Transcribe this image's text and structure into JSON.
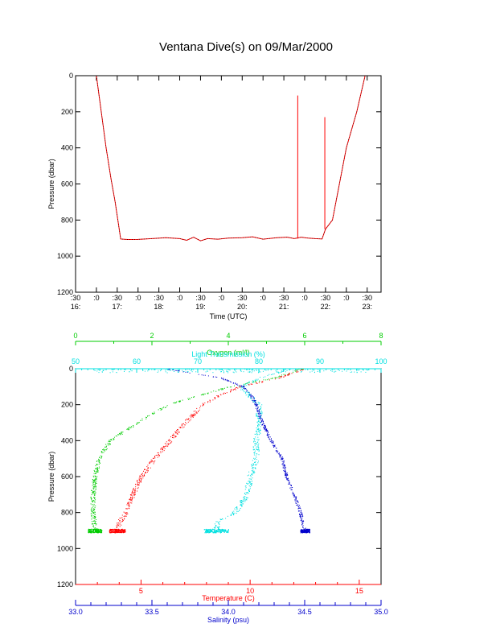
{
  "title": "Ventana Dive(s) on 09/Mar/2000",
  "colors": {
    "axis": "#000000",
    "temperature": "#ff0000",
    "salinity": "#0000cc",
    "oxygen": "#00cc00",
    "transmission": "#00e0e0",
    "trace": "#000000"
  },
  "chart_data": [
    {
      "type": "line",
      "xlabel": "Time (UTC)",
      "ylabel": "Pressure (dbar)",
      "yticks": [
        "0",
        "200",
        "400",
        "600",
        "800",
        "1000",
        "1200"
      ],
      "ylim": [
        1200,
        0
      ],
      "xlim": [
        "16:30",
        "23:50"
      ],
      "xtick_minutes": [
        ":30",
        ":0",
        ":30",
        ":0",
        ":30",
        ":0",
        ":30",
        ":0",
        ":30",
        ":0",
        ":30",
        ":0",
        ":30",
        ":0",
        ":30"
      ],
      "xtick_hours": [
        "16:",
        "17:",
        "18:",
        "19:",
        "20:",
        "21:",
        "22:",
        "23:"
      ],
      "series": [
        {
          "x": [
            "17:00",
            "17:07",
            "17:14",
            "17:21",
            "17:27",
            "17:35",
            "17:45",
            "18:00",
            "18:20",
            "18:40",
            "19:00",
            "19:10",
            "19:20",
            "19:30",
            "19:40",
            "19:55",
            "20:10",
            "20:30",
            "20:45",
            "21:00",
            "21:20",
            "21:35",
            "21:45",
            "21:55",
            "22:05",
            "22:15",
            "22:25",
            "22:30",
            "22:40",
            "22:50",
            "23:00",
            "23:15",
            "23:27"
          ],
          "y": [
            0,
            200,
            400,
            570,
            700,
            905,
            908,
            907,
            903,
            898,
            903,
            912,
            895,
            915,
            903,
            906,
            900,
            898,
            893,
            906,
            898,
            895,
            903,
            895,
            900,
            903,
            905,
            850,
            800,
            600,
            400,
            200,
            0
          ]
        }
      ],
      "spikes": [
        {
          "x": "21:50",
          "y_top": 110,
          "y_bottom": 903
        },
        {
          "x": "22:29",
          "y_top": 230,
          "y_bottom": 850
        }
      ]
    },
    {
      "type": "scatter",
      "ylabel": "Pressure (dbar)",
      "yticks": [
        "0",
        "200",
        "400",
        "600",
        "800",
        "1000",
        "1200"
      ],
      "ylim": [
        1200,
        0
      ],
      "axes": [
        {
          "name": "oxygen",
          "label": "Oxygen (ml/l)",
          "ticks": [
            "0",
            "2",
            "4",
            "6",
            "8"
          ],
          "range": [
            0,
            8
          ]
        },
        {
          "name": "transmission",
          "label": "Light Transmission (%)",
          "ticks": [
            "50",
            "60",
            "70",
            "80",
            "90",
            "100"
          ],
          "range": [
            50,
            100
          ]
        },
        {
          "name": "temperature",
          "label": "Temperature (C)",
          "ticks": [
            "5",
            "10",
            "15"
          ],
          "range": [
            2,
            16
          ]
        },
        {
          "name": "salinity",
          "label": "Salinity (psu)",
          "ticks": [
            "33.0",
            "33.5",
            "34.0",
            "34.5",
            "35.0"
          ],
          "range": [
            33.0,
            35.0
          ]
        }
      ],
      "series": [
        {
          "name": "oxygen",
          "p": [
            0,
            50,
            100,
            150,
            200,
            300,
            400,
            500,
            600,
            700,
            800,
            900
          ],
          "v": [
            5.9,
            5.2,
            4.0,
            3.2,
            2.4,
            1.6,
            0.9,
            0.6,
            0.5,
            0.45,
            0.45,
            0.5
          ]
        },
        {
          "name": "transmission",
          "p": [
            0,
            50,
            100,
            200,
            300,
            400,
            500,
            600,
            700,
            800,
            850,
            900
          ],
          "v": [
            85,
            80,
            77,
            80,
            80,
            79.5,
            79.5,
            78.5,
            78,
            76,
            73,
            73
          ]
        },
        {
          "name": "temperature",
          "p": [
            0,
            50,
            100,
            150,
            200,
            300,
            400,
            500,
            600,
            700,
            800,
            850,
            900
          ],
          "v": [
            12.4,
            11.3,
            9.5,
            8.5,
            7.8,
            7.0,
            6.3,
            5.6,
            5.0,
            4.6,
            4.3,
            4.0,
            3.9
          ]
        },
        {
          "name": "salinity",
          "p": [
            0,
            50,
            100,
            150,
            200,
            300,
            400,
            500,
            600,
            700,
            800,
            900
          ],
          "v": [
            33.6,
            33.95,
            34.1,
            34.15,
            34.18,
            34.22,
            34.28,
            34.35,
            34.38,
            34.43,
            34.47,
            34.5
          ]
        }
      ]
    }
  ]
}
